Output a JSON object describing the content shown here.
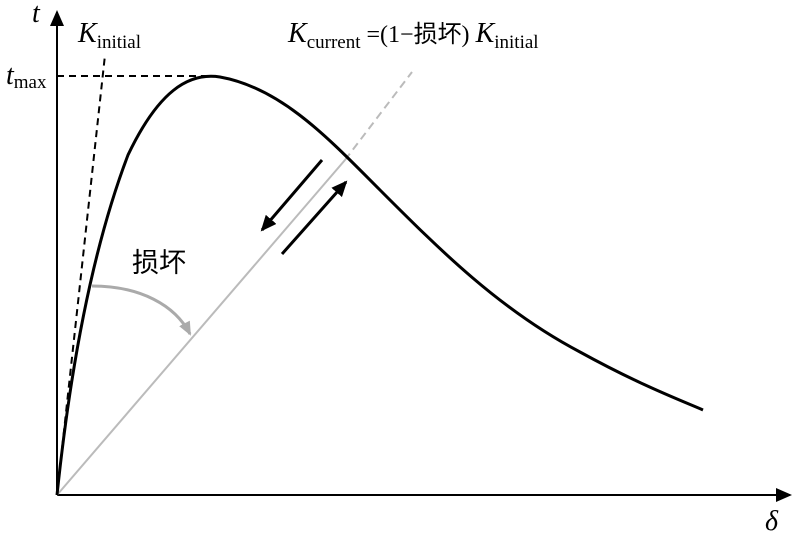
{
  "axes": {
    "y_label": "t",
    "x_label": "δ"
  },
  "t_max": {
    "symbol": "t",
    "subscript": "max"
  },
  "k_initial": {
    "symbol": "K",
    "subscript": "initial"
  },
  "k_current": {
    "symbol": "K",
    "subscript": "current",
    "expression": "=(1−损坏)",
    "factor_symbol": "K",
    "factor_subscript": "initial"
  },
  "damage_label": "损坏"
}
